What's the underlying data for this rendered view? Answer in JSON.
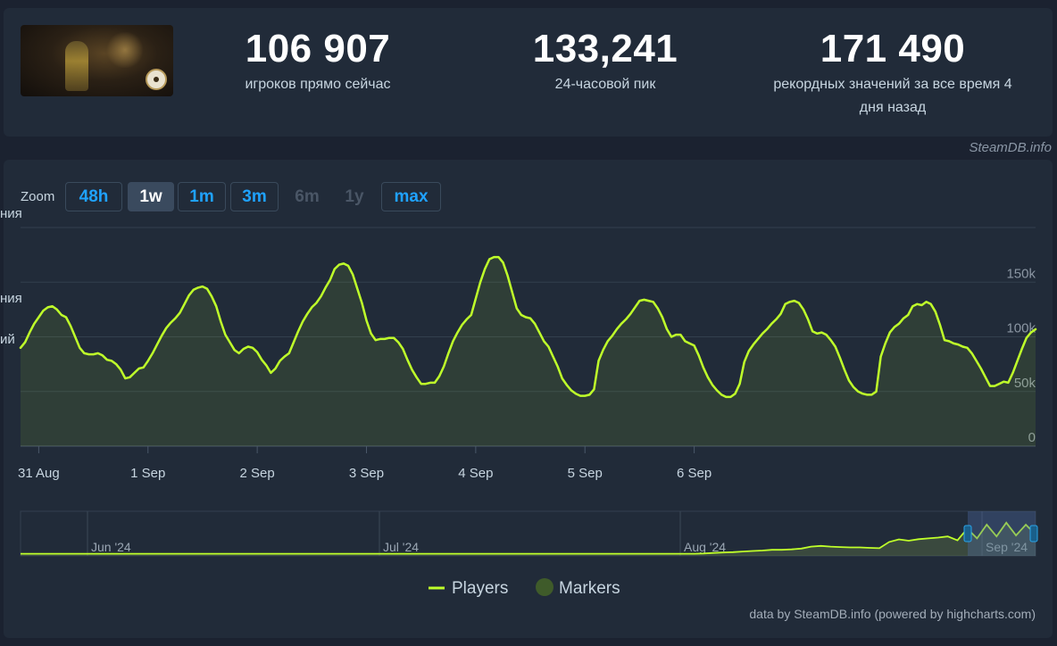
{
  "stats": [
    {
      "value": "106 907",
      "label": "игроков прямо сейчас"
    },
    {
      "value": "133,241",
      "label": "24-часовой пик"
    },
    {
      "value": "171 490",
      "label_line1": "рекордных значений за все время 4",
      "label_line2": "дня назад"
    }
  ],
  "watermark": "SteamDB.info",
  "zoom": {
    "label": "Zoom",
    "buttons": [
      {
        "label": "48h",
        "state": "normal"
      },
      {
        "label": "1w",
        "state": "active"
      },
      {
        "label": "1m",
        "state": "normal"
      },
      {
        "label": "3m",
        "state": "normal"
      },
      {
        "label": "6m",
        "state": "disabled"
      },
      {
        "label": "1y",
        "state": "disabled"
      },
      {
        "label": "max",
        "state": "normal"
      }
    ]
  },
  "cut_labels": [
    "ния",
    "ния",
    "ий"
  ],
  "chart_data": {
    "type": "line",
    "series": [
      {
        "name": "Players",
        "color": "#bfff2a",
        "x_start": "2024-08-30 20:00",
        "x_step_hours": 1,
        "values": [
          90000,
          95000,
          104000,
          112000,
          118000,
          124000,
          127000,
          128000,
          125000,
          120000,
          118000,
          110000,
          100000,
          90000,
          85000,
          84000,
          84000,
          85000,
          83000,
          79000,
          78000,
          75000,
          70000,
          62000,
          63000,
          67000,
          71000,
          72000,
          78000,
          85000,
          93000,
          101000,
          108000,
          113000,
          117000,
          122000,
          130000,
          138000,
          143000,
          145000,
          146000,
          144000,
          137000,
          128000,
          114000,
          102000,
          95000,
          88000,
          85000,
          89000,
          91000,
          90000,
          86000,
          79000,
          74000,
          67000,
          71000,
          78000,
          82000,
          85000,
          95000,
          105000,
          114000,
          121000,
          127000,
          131000,
          137000,
          145000,
          152000,
          162000,
          166000,
          167000,
          165000,
          157000,
          144000,
          131000,
          115000,
          103000,
          97000,
          98000,
          98000,
          99000,
          99000,
          95000,
          89000,
          79000,
          70000,
          63000,
          57000,
          57000,
          58000,
          58000,
          64000,
          73000,
          85000,
          96000,
          104000,
          111000,
          116000,
          120000,
          135000,
          150000,
          162000,
          171000,
          173000,
          173000,
          168000,
          156000,
          141000,
          126000,
          120000,
          118000,
          117000,
          112000,
          104000,
          96000,
          91000,
          82000,
          73000,
          62000,
          56000,
          51000,
          48000,
          46000,
          46000,
          47000,
          52000,
          78000,
          88000,
          96000,
          101000,
          107000,
          112000,
          116000,
          121000,
          127000,
          133000,
          134000,
          133000,
          132000,
          126000,
          118000,
          107000,
          100000,
          102000,
          102000,
          96000,
          94000,
          92000,
          83000,
          72000,
          63000,
          56000,
          51000,
          47000,
          45000,
          45000,
          48000,
          57000,
          77000,
          87000,
          93000,
          98000,
          103000,
          107000,
          112000,
          116000,
          121000,
          130000,
          132000,
          133000,
          131000,
          125000,
          116000,
          105000,
          103000,
          104000,
          102000,
          97000,
          91000,
          81000,
          70000,
          60000,
          54000,
          50000,
          48000,
          47000,
          47000,
          50000,
          82000,
          94000,
          104000,
          109000,
          112000,
          117000,
          120000,
          128000,
          130000,
          129000,
          132000,
          130000,
          123000,
          111000,
          97000,
          96000,
          94000,
          93000,
          91000,
          90000,
          85000,
          78000,
          71000,
          63000,
          55000,
          55000,
          57000,
          59000,
          58000,
          67000,
          78000,
          89000,
          99000,
          104000,
          106907
        ]
      },
      {
        "name": "Markers",
        "color": "#3f5b2a",
        "values": []
      }
    ],
    "x_tick_labels": [
      "31 Aug",
      "1 Sep",
      "2 Sep",
      "3 Sep",
      "4 Sep",
      "5 Sep",
      "6 Sep"
    ],
    "y_tick_labels": [
      "0",
      "50k",
      "100k",
      "150k"
    ],
    "ylim": [
      0,
      200000
    ],
    "grid": true,
    "legend": "bottom-center",
    "navigator": {
      "labels": [
        "Jun '24",
        "Jul '24",
        "Aug '24",
        "Sep '24"
      ],
      "values": [
        2000,
        2000,
        2000,
        2000,
        2000,
        2000,
        2000,
        2000,
        2000,
        2000,
        2000,
        2000,
        2000,
        2000,
        2000,
        2000,
        2000,
        2000,
        2000,
        2000,
        2000,
        2000,
        2000,
        2000,
        2000,
        2000,
        2000,
        2000,
        2000,
        2000,
        2000,
        2000,
        2000,
        2000,
        2000,
        2000,
        2000,
        2000,
        2000,
        2000,
        2000,
        2000,
        2000,
        2000,
        2000,
        2000,
        2000,
        2000,
        2000,
        2000,
        2000,
        2000,
        2000,
        2000,
        2000,
        2000,
        2000,
        2000,
        2000,
        2000,
        2000,
        2000,
        2000,
        2000,
        2000,
        2000,
        2000,
        2000,
        2000,
        2000,
        3000,
        6000,
        8000,
        10000,
        13000,
        16000,
        18000,
        22000,
        22000,
        24000,
        28000,
        38000,
        42000,
        38000,
        36000,
        34000,
        34000,
        32000,
        30000,
        62000,
        75000,
        68000,
        76000,
        80000,
        84000,
        90000,
        70000,
        130000,
        80000,
        150000,
        90000,
        160000,
        95000,
        150000,
        100000
      ]
    }
  },
  "legend": {
    "players": "Players",
    "markers": "Markers"
  },
  "credit": "data by SteamDB.info (powered by highcharts.com)"
}
